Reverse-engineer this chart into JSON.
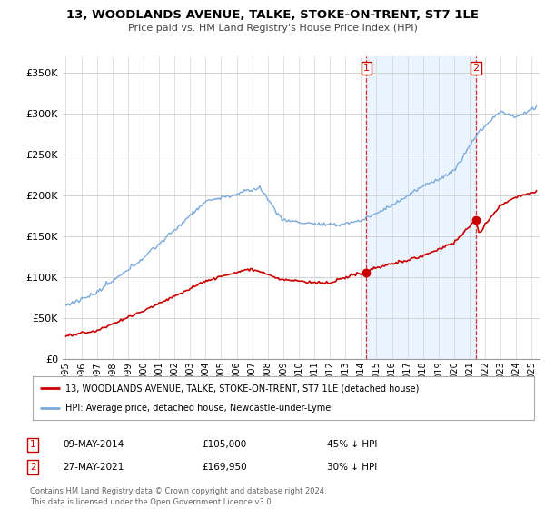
{
  "title": "13, WOODLANDS AVENUE, TALKE, STOKE-ON-TRENT, ST7 1LE",
  "subtitle": "Price paid vs. HM Land Registry's House Price Index (HPI)",
  "ylabel_ticks": [
    "£0",
    "£50K",
    "£100K",
    "£150K",
    "£200K",
    "£250K",
    "£300K",
    "£350K"
  ],
  "ytick_values": [
    0,
    50000,
    100000,
    150000,
    200000,
    250000,
    300000,
    350000
  ],
  "ylim": [
    0,
    370000
  ],
  "xlim_start": 1994.8,
  "xlim_end": 2025.5,
  "background_color": "#ffffff",
  "grid_color": "#cccccc",
  "hpi_color": "#7aaadd",
  "price_color": "#cc0000",
  "shade_color": "#ddeeff",
  "purchase1_date": 2014.36,
  "purchase1_price": 105000,
  "purchase1_label": "1",
  "purchase2_date": 2021.41,
  "purchase2_price": 169950,
  "purchase2_label": "2",
  "legend_house_label": "13, WOODLANDS AVENUE, TALKE, STOKE-ON-TRENT, ST7 1LE (detached house)",
  "legend_hpi_label": "HPI: Average price, detached house, Newcastle-under-Lyme",
  "table_row1": [
    "1",
    "09-MAY-2014",
    "£105,000",
    "45% ↓ HPI"
  ],
  "table_row2": [
    "2",
    "27-MAY-2021",
    "£169,950",
    "30% ↓ HPI"
  ],
  "footnote": "Contains HM Land Registry data © Crown copyright and database right 2024.\nThis data is licensed under the Open Government Licence v3.0.",
  "xtick_years": [
    1995,
    1996,
    1997,
    1998,
    1999,
    2000,
    2001,
    2002,
    2003,
    2004,
    2005,
    2006,
    2007,
    2008,
    2009,
    2010,
    2011,
    2012,
    2013,
    2014,
    2015,
    2016,
    2017,
    2018,
    2019,
    2020,
    2021,
    2022,
    2023,
    2024,
    2025
  ]
}
